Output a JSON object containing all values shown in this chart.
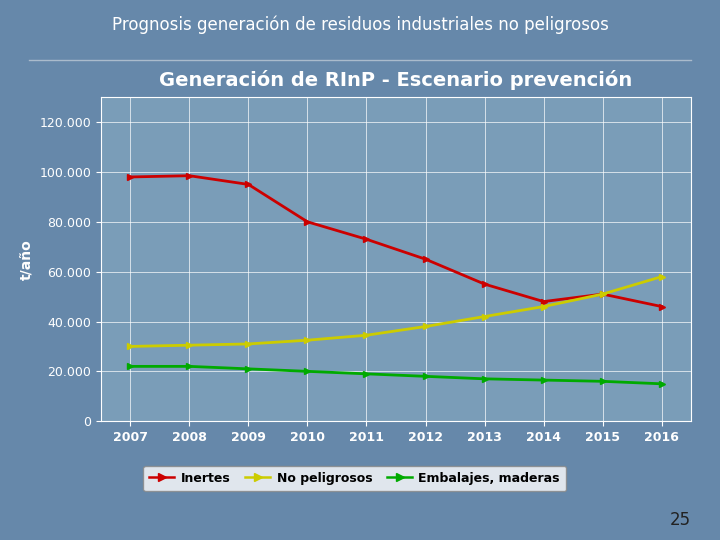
{
  "title_slide": "Prognosis generación de residuos industriales no peligrosos",
  "chart_title": "Generación de RInP - Escenario prevención",
  "ylabel": "t/año",
  "page_number": "25",
  "years": [
    2007,
    2008,
    2009,
    2010,
    2011,
    2012,
    2013,
    2014,
    2015,
    2016
  ],
  "inertes": [
    98000,
    98500,
    95000,
    80000,
    73000,
    65000,
    55000,
    48000,
    51000,
    46000
  ],
  "no_peligrosos": [
    30000,
    30500,
    31000,
    32500,
    34500,
    38000,
    42000,
    46000,
    51000,
    58000
  ],
  "embalajes_maderas": [
    22000,
    22000,
    21000,
    20000,
    19000,
    18000,
    17000,
    16500,
    16000,
    15000
  ],
  "color_inertes": "#cc0000",
  "color_no_peligrosos": "#cccc00",
  "color_embalajes": "#00aa00",
  "slide_bg": "#6688aa",
  "chart_bg": "#7a9db8",
  "title_color": "#ffffff",
  "chart_title_color": "#ffffff",
  "grid_color": "#ffffff",
  "tick_label_color": "#ffffff",
  "ylabel_color": "#ffffff",
  "sep_line_color": "#aabbcc",
  "legend_border_color": "#888888",
  "ylim": [
    0,
    130000
  ],
  "yticks": [
    0,
    20000,
    40000,
    60000,
    80000,
    100000,
    120000
  ],
  "legend_labels": [
    "Inertes",
    "No peligrosos",
    "Embalajes, maderas"
  ],
  "title_fontsize": 12,
  "chart_title_fontsize": 14,
  "tick_fontsize": 9,
  "ylabel_fontsize": 10,
  "legend_fontsize": 9,
  "page_num_fontsize": 12
}
